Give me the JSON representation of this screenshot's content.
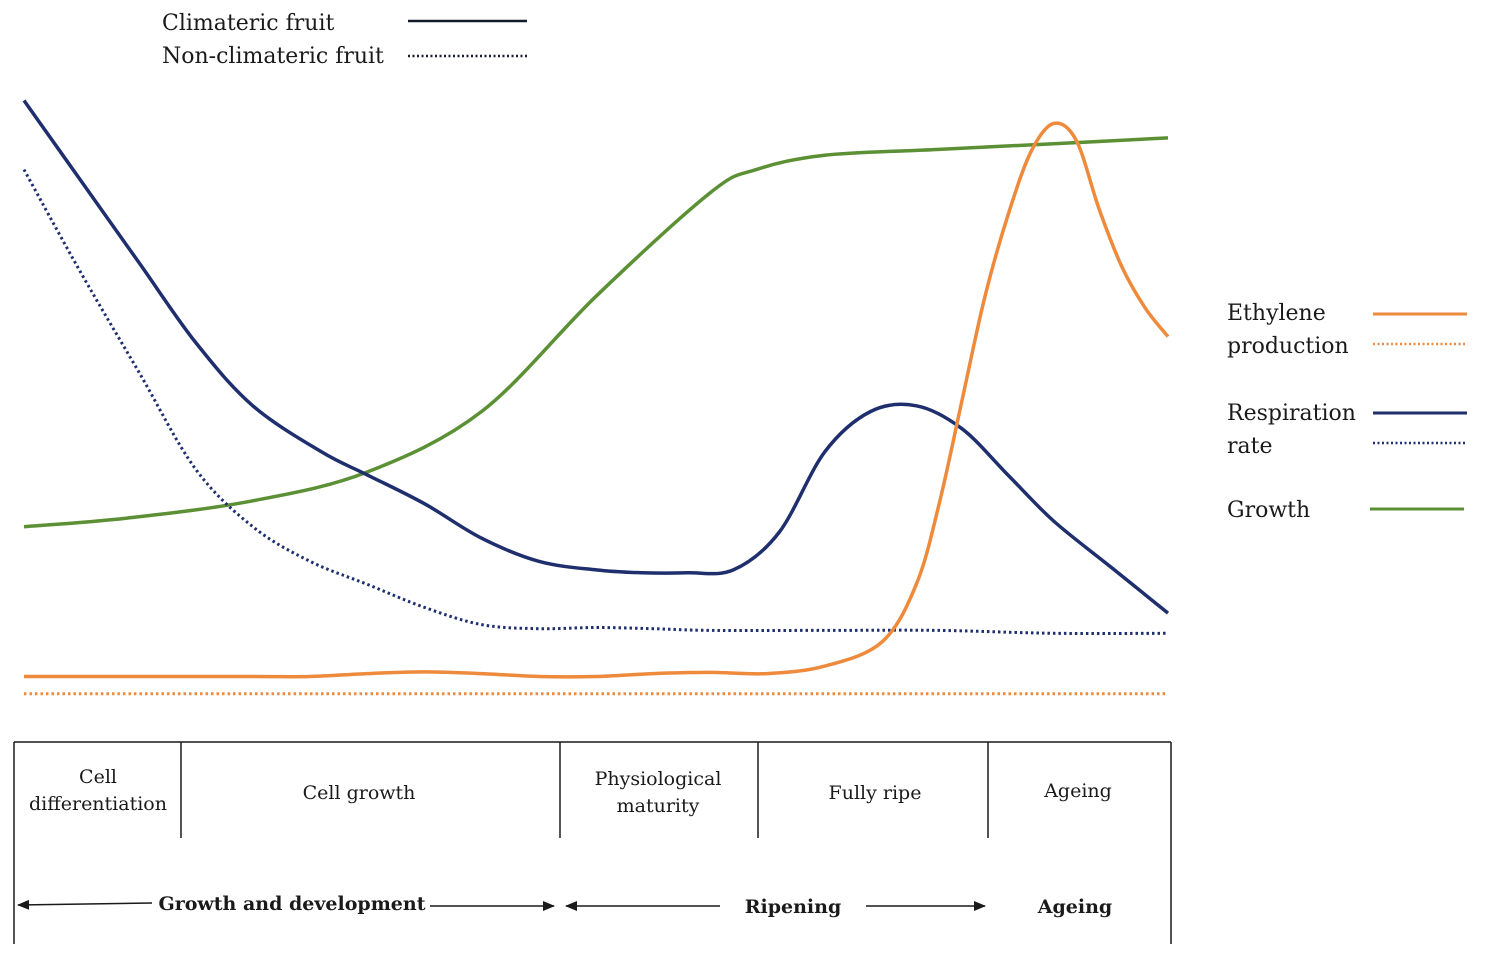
{
  "legend_style": {
    "solid_label": "Climateric fruit",
    "dotted_label": "Non-climateric fruit",
    "line_color": "#141a2e"
  },
  "legend_variables": {
    "ethylene": {
      "line1": "Ethylene",
      "line2": "production",
      "color": "#ee8a3c"
    },
    "respiration": {
      "line1": "Respiration",
      "line2": "rate",
      "color": "#1f2f6e"
    },
    "growth": {
      "label": "Growth",
      "color": "#5c9035"
    }
  },
  "chart_data": {
    "type": "line",
    "title": "",
    "xlabel": "",
    "ylabel": "",
    "x_range": [
      0,
      100
    ],
    "y_range": [
      0,
      100
    ],
    "series": [
      {
        "name": "Growth",
        "style": "solid",
        "color": "#5c9035",
        "x": [
          0,
          9,
          20,
          30,
          40,
          50,
          60,
          64,
          70,
          80,
          90,
          100
        ],
        "y": [
          28,
          29.5,
          32.5,
          37.5,
          48,
          68,
          86,
          90,
          92.5,
          93.5,
          94.5,
          95.5
        ]
      },
      {
        "name": "Respiration rate (climacteric)",
        "style": "solid",
        "color": "#1f2f6e",
        "x": [
          0,
          5,
          10,
          15,
          20,
          26,
          30,
          35,
          40,
          45,
          50,
          54,
          58,
          62,
          66,
          70,
          74,
          78,
          82,
          86,
          90,
          95,
          100
        ],
        "y": [
          102,
          88,
          74,
          60,
          49,
          41,
          37,
          32,
          26,
          22,
          20.5,
          20,
          20,
          20.5,
          27,
          41,
          48,
          49,
          45,
          37,
          29,
          21,
          13
        ]
      },
      {
        "name": "Respiration rate (non-climacteric)",
        "style": "dotted",
        "color": "#1f2f6e",
        "x": [
          0,
          5,
          10,
          15,
          20,
          25,
          30,
          35,
          40,
          45,
          50,
          55,
          60,
          70,
          80,
          90,
          100
        ],
        "y": [
          90,
          72,
          55,
          38,
          28,
          22,
          18,
          14,
          11,
          10.3,
          10.5,
          10.3,
          10,
          10,
          10,
          9.5,
          9.5
        ]
      },
      {
        "name": "Ethylene production (climacteric)",
        "style": "solid",
        "color": "#ee8a3c",
        "x": [
          0,
          10,
          20,
          25,
          30,
          35,
          40,
          45,
          50,
          55,
          60,
          65,
          70,
          75,
          78,
          80,
          82,
          84,
          86,
          88,
          90,
          92,
          94,
          96,
          98,
          100
        ],
        "y": [
          2,
          2,
          2,
          2,
          2.5,
          2.8,
          2.5,
          2,
          2,
          2.5,
          2.7,
          2.5,
          3.8,
          8,
          18,
          32,
          50,
          68,
          82,
          93,
          98,
          95,
          83,
          73,
          66,
          61
        ]
      },
      {
        "name": "Ethylene production (non-climacteric)",
        "style": "dotted",
        "color": "#ee8a3c",
        "x": [
          0,
          25,
          50,
          75,
          100
        ],
        "y": [
          -1,
          -1,
          -1,
          -1,
          -1
        ]
      }
    ]
  },
  "stages": [
    {
      "line1": "Cell",
      "line2": "differentiation"
    },
    {
      "label": "Cell growth"
    },
    {
      "line1": "Physiological",
      "line2": "maturity"
    },
    {
      "label": "Fully ripe"
    },
    {
      "label": "Ageing"
    }
  ],
  "phases": {
    "growth_development": "Growth and development",
    "ripening": "Ripening",
    "ageing": "Ageing"
  }
}
